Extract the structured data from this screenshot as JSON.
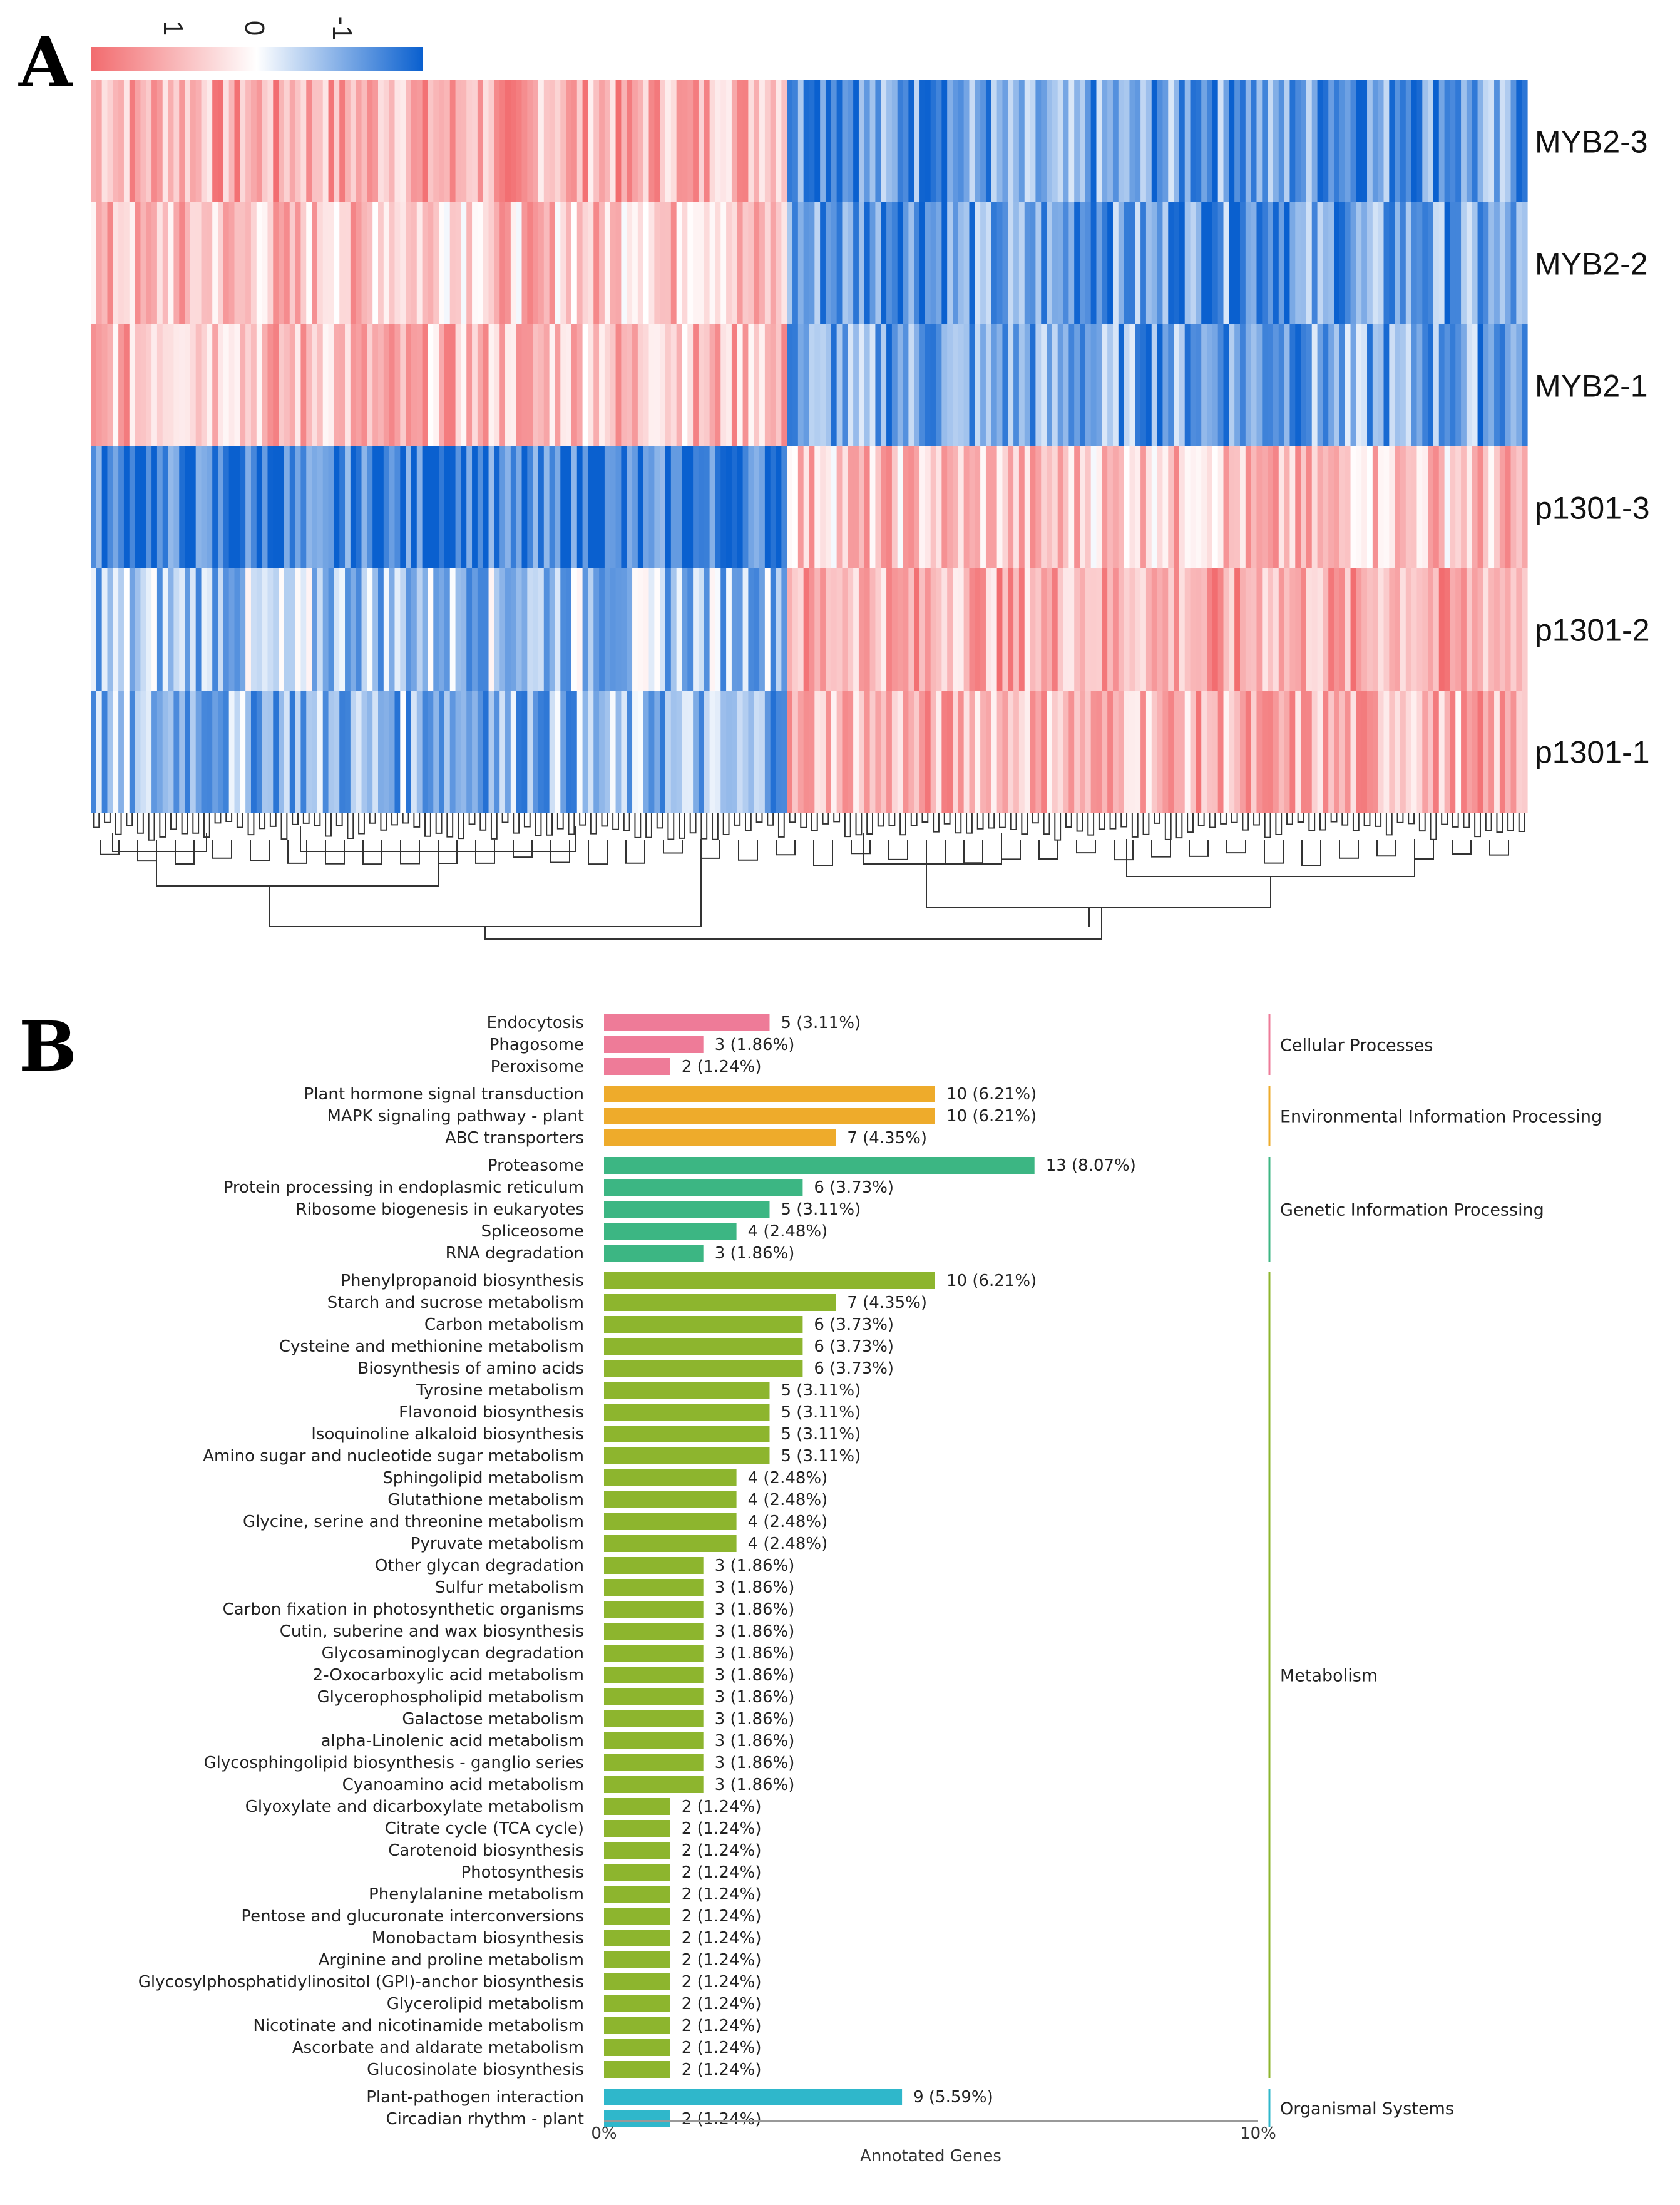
{
  "panel_a": {
    "letter": "A",
    "legend_ticks": [
      "1",
      "0",
      "-1"
    ],
    "colors": {
      "high": "#f26b6e",
      "mid": "#ffffff",
      "low": "#0a60cf"
    },
    "chart_data": {
      "type": "heatmap",
      "rows": [
        "MYB2-3",
        "MYB2-2",
        "MYB2-1",
        "p1301-3",
        "p1301-2",
        "p1301-1"
      ],
      "clusters": [
        {
          "name": "left cluster",
          "mean": [
            0.55,
            0.4,
            0.45,
            -0.85,
            -0.35,
            -0.45
          ]
        },
        {
          "name": "right cluster",
          "mean": [
            -0.6,
            -0.6,
            -0.55,
            0.4,
            0.55,
            0.5
          ]
        }
      ],
      "legend_range": [
        1,
        -1
      ]
    }
  },
  "panel_b": {
    "letter": "B",
    "x_axis_label": "Annotated Genes",
    "x_ticks": [
      "0%",
      "10%"
    ],
    "chart_data": {
      "type": "bar",
      "orientation": "horizontal",
      "xlabel": "Annotated Genes",
      "xlim": [
        0,
        10
      ],
      "groups": [
        {
          "name": "Cellular Processes",
          "color": "#ee7b98",
          "items": [
            {
              "label": "Endocytosis",
              "value": 5,
              "text": "5 (3.11%)"
            },
            {
              "label": "Phagosome",
              "value": 3,
              "text": "3 (1.86%)"
            },
            {
              "label": "Peroxisome",
              "value": 2,
              "text": "2 (1.24%)"
            }
          ]
        },
        {
          "name": "Environmental Information Processing",
          "color": "#eeab2b",
          "items": [
            {
              "label": "Plant hormone signal transduction",
              "value": 10,
              "text": "10 (6.21%)"
            },
            {
              "label": "MAPK signaling pathway - plant",
              "value": 10,
              "text": "10 (6.21%)"
            },
            {
              "label": "ABC transporters",
              "value": 7,
              "text": "7 (4.35%)"
            }
          ]
        },
        {
          "name": "Genetic Information Processing",
          "color": "#3cb683",
          "items": [
            {
              "label": "Proteasome",
              "value": 13,
              "text": "13 (8.07%)"
            },
            {
              "label": "Protein processing in endoplasmic reticulum",
              "value": 6,
              "text": "6 (3.73%)"
            },
            {
              "label": "Ribosome biogenesis in eukaryotes",
              "value": 5,
              "text": "5 (3.11%)"
            },
            {
              "label": "Spliceosome",
              "value": 4,
              "text": "4 (2.48%)"
            },
            {
              "label": "RNA degradation",
              "value": 3,
              "text": "3 (1.86%)"
            }
          ]
        },
        {
          "name": "Metabolism",
          "color": "#8db52e",
          "items": [
            {
              "label": "Phenylpropanoid biosynthesis",
              "value": 10,
              "text": "10 (6.21%)"
            },
            {
              "label": "Starch and sucrose metabolism",
              "value": 7,
              "text": "7 (4.35%)"
            },
            {
              "label": "Carbon metabolism",
              "value": 6,
              "text": "6 (3.73%)"
            },
            {
              "label": "Cysteine and methionine metabolism",
              "value": 6,
              "text": "6 (3.73%)"
            },
            {
              "label": "Biosynthesis of amino acids",
              "value": 6,
              "text": "6 (3.73%)"
            },
            {
              "label": "Tyrosine metabolism",
              "value": 5,
              "text": "5 (3.11%)"
            },
            {
              "label": "Flavonoid biosynthesis",
              "value": 5,
              "text": "5 (3.11%)"
            },
            {
              "label": "Isoquinoline alkaloid biosynthesis",
              "value": 5,
              "text": "5 (3.11%)"
            },
            {
              "label": "Amino sugar and nucleotide sugar metabolism",
              "value": 5,
              "text": "5 (3.11%)"
            },
            {
              "label": "Sphingolipid metabolism",
              "value": 4,
              "text": "4 (2.48%)"
            },
            {
              "label": "Glutathione metabolism",
              "value": 4,
              "text": "4 (2.48%)"
            },
            {
              "label": "Glycine, serine and threonine metabolism",
              "value": 4,
              "text": "4 (2.48%)"
            },
            {
              "label": "Pyruvate metabolism",
              "value": 4,
              "text": "4 (2.48%)"
            },
            {
              "label": "Other glycan degradation",
              "value": 3,
              "text": "3 (1.86%)"
            },
            {
              "label": "Sulfur metabolism",
              "value": 3,
              "text": "3 (1.86%)"
            },
            {
              "label": "Carbon fixation in photosynthetic organisms",
              "value": 3,
              "text": "3 (1.86%)"
            },
            {
              "label": "Cutin, suberine and wax biosynthesis",
              "value": 3,
              "text": "3 (1.86%)"
            },
            {
              "label": "Glycosaminoglycan degradation",
              "value": 3,
              "text": "3 (1.86%)"
            },
            {
              "label": "2-Oxocarboxylic acid metabolism",
              "value": 3,
              "text": "3 (1.86%)"
            },
            {
              "label": "Glycerophospholipid metabolism",
              "value": 3,
              "text": "3 (1.86%)"
            },
            {
              "label": "Galactose metabolism",
              "value": 3,
              "text": "3 (1.86%)"
            },
            {
              "label": "alpha-Linolenic acid metabolism",
              "value": 3,
              "text": "3 (1.86%)"
            },
            {
              "label": "Glycosphingolipid biosynthesis - ganglio series",
              "value": 3,
              "text": "3 (1.86%)"
            },
            {
              "label": "Cyanoamino acid metabolism",
              "value": 3,
              "text": "3 (1.86%)"
            },
            {
              "label": "Glyoxylate and dicarboxylate metabolism",
              "value": 2,
              "text": "2 (1.24%)"
            },
            {
              "label": "Citrate cycle (TCA cycle)",
              "value": 2,
              "text": "2 (1.24%)"
            },
            {
              "label": "Carotenoid biosynthesis",
              "value": 2,
              "text": "2 (1.24%)"
            },
            {
              "label": "Photosynthesis",
              "value": 2,
              "text": "2 (1.24%)"
            },
            {
              "label": "Phenylalanine metabolism",
              "value": 2,
              "text": "2 (1.24%)"
            },
            {
              "label": "Pentose and glucuronate interconversions",
              "value": 2,
              "text": "2 (1.24%)"
            },
            {
              "label": "Monobactam biosynthesis",
              "value": 2,
              "text": "2 (1.24%)"
            },
            {
              "label": "Arginine and proline metabolism",
              "value": 2,
              "text": "2 (1.24%)"
            },
            {
              "label": "Glycosylphosphatidylinositol (GPI)-anchor biosynthesis",
              "value": 2,
              "text": "2 (1.24%)"
            },
            {
              "label": "Glycerolipid metabolism",
              "value": 2,
              "text": "2 (1.24%)"
            },
            {
              "label": "Nicotinate and nicotinamide metabolism",
              "value": 2,
              "text": "2 (1.24%)"
            },
            {
              "label": "Ascorbate and aldarate metabolism",
              "value": 2,
              "text": "2 (1.24%)"
            },
            {
              "label": "Glucosinolate biosynthesis",
              "value": 2,
              "text": "2 (1.24%)"
            }
          ]
        },
        {
          "name": "Organismal Systems",
          "color": "#2fb7cb",
          "items": [
            {
              "label": "Plant-pathogen interaction",
              "value": 9,
              "text": "9 (5.59%)"
            },
            {
              "label": "Circadian rhythm - plant",
              "value": 2,
              "text": "2 (1.24%)"
            }
          ]
        }
      ]
    }
  }
}
